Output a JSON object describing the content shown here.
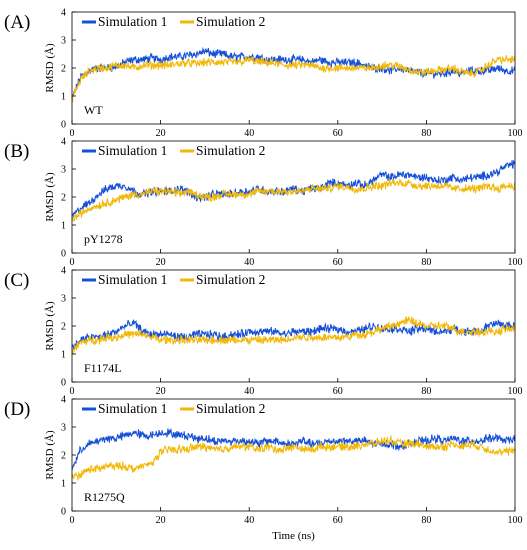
{
  "figure": {
    "xlabel": "Time (ns)",
    "x_ticks": [
      "0",
      "20",
      "40",
      "60",
      "80",
      "100"
    ],
    "y_ticks": [
      "0",
      "1",
      "2",
      "3",
      "4"
    ],
    "legend": [
      "Simulation 1",
      "Simulation 2"
    ]
  },
  "colors": {
    "sim1": "#1550d8",
    "sim2": "#f2b807"
  },
  "chart_data": [
    {
      "type": "line",
      "panel": "(A)",
      "annotation": "WT",
      "ylabel": "RMSD (Å)",
      "xlabel": "",
      "xlim": [
        0,
        100
      ],
      "ylim": [
        0,
        4
      ],
      "x": [
        0,
        2,
        4,
        6,
        8,
        10,
        12,
        14,
        16,
        18,
        20,
        22,
        24,
        26,
        28,
        30,
        32,
        34,
        36,
        38,
        40,
        42,
        44,
        46,
        48,
        50,
        52,
        54,
        56,
        58,
        60,
        62,
        64,
        66,
        68,
        70,
        72,
        74,
        76,
        78,
        80,
        82,
        84,
        86,
        88,
        90,
        92,
        94,
        96,
        98,
        100
      ],
      "series": [
        {
          "name": "Simulation 1",
          "values": [
            0.9,
            1.7,
            1.9,
            2.0,
            2.0,
            2.05,
            2.2,
            2.3,
            2.3,
            2.35,
            2.3,
            2.4,
            2.4,
            2.45,
            2.5,
            2.6,
            2.5,
            2.5,
            2.4,
            2.4,
            2.4,
            2.4,
            2.3,
            2.3,
            2.3,
            2.3,
            2.3,
            2.2,
            2.3,
            2.2,
            2.2,
            2.2,
            2.2,
            2.1,
            2.0,
            2.0,
            1.9,
            2.0,
            1.9,
            1.85,
            1.8,
            1.8,
            1.8,
            1.9,
            1.8,
            1.9,
            1.9,
            1.9,
            2.0,
            1.9,
            1.9
          ]
        },
        {
          "name": "Simulation 2",
          "values": [
            0.9,
            1.6,
            1.9,
            2.0,
            2.0,
            2.1,
            2.1,
            2.0,
            2.1,
            2.1,
            2.1,
            2.1,
            2.15,
            2.2,
            2.15,
            2.2,
            2.2,
            2.2,
            2.2,
            2.2,
            2.3,
            2.2,
            2.2,
            2.15,
            2.1,
            2.1,
            2.1,
            2.1,
            2.0,
            2.0,
            2.0,
            2.0,
            2.0,
            2.0,
            2.0,
            2.1,
            2.1,
            2.05,
            1.95,
            1.85,
            1.85,
            1.9,
            1.95,
            2.0,
            1.85,
            1.8,
            1.9,
            2.1,
            2.3,
            2.3,
            2.3
          ]
        }
      ]
    },
    {
      "type": "line",
      "panel": "(B)",
      "annotation": "pY1278",
      "ylabel": "RMSD (Å)",
      "xlabel": "",
      "xlim": [
        0,
        100
      ],
      "ylim": [
        0,
        4
      ],
      "x": [
        0,
        2,
        4,
        6,
        8,
        10,
        12,
        14,
        16,
        18,
        20,
        22,
        24,
        26,
        28,
        30,
        32,
        34,
        36,
        38,
        40,
        42,
        44,
        46,
        48,
        50,
        52,
        54,
        56,
        58,
        60,
        62,
        64,
        66,
        68,
        70,
        72,
        74,
        76,
        78,
        80,
        82,
        84,
        86,
        88,
        90,
        92,
        94,
        96,
        98,
        100
      ],
      "series": [
        {
          "name": "Simulation 1",
          "values": [
            1.3,
            1.6,
            1.8,
            2.1,
            2.3,
            2.4,
            2.4,
            2.2,
            2.1,
            2.2,
            2.2,
            2.2,
            2.3,
            2.2,
            2.0,
            2.0,
            2.1,
            2.1,
            2.1,
            2.2,
            2.2,
            2.3,
            2.2,
            2.2,
            2.2,
            2.3,
            2.2,
            2.3,
            2.3,
            2.5,
            2.5,
            2.4,
            2.5,
            2.4,
            2.6,
            2.8,
            2.7,
            2.8,
            2.8,
            2.7,
            2.7,
            2.6,
            2.6,
            2.7,
            2.6,
            2.7,
            2.7,
            2.8,
            2.9,
            3.1,
            3.2
          ]
        },
        {
          "name": "Simulation 2",
          "values": [
            1.2,
            1.4,
            1.6,
            1.7,
            1.8,
            1.9,
            2.0,
            2.1,
            2.1,
            2.2,
            2.2,
            2.2,
            2.1,
            2.2,
            2.1,
            2.0,
            2.0,
            2.1,
            2.1,
            2.1,
            2.1,
            2.2,
            2.2,
            2.2,
            2.2,
            2.2,
            2.2,
            2.3,
            2.3,
            2.3,
            2.4,
            2.35,
            2.3,
            2.3,
            2.4,
            2.4,
            2.5,
            2.5,
            2.5,
            2.4,
            2.4,
            2.4,
            2.4,
            2.3,
            2.3,
            2.3,
            2.3,
            2.4,
            2.3,
            2.4,
            2.4
          ]
        }
      ]
    },
    {
      "type": "line",
      "panel": "(C)",
      "annotation": "F1174L",
      "ylabel": "RMSD (Å)",
      "xlabel": "",
      "xlim": [
        0,
        100
      ],
      "ylim": [
        0,
        4
      ],
      "x": [
        0,
        2,
        4,
        6,
        8,
        10,
        12,
        14,
        16,
        18,
        20,
        22,
        24,
        26,
        28,
        30,
        32,
        34,
        36,
        38,
        40,
        42,
        44,
        46,
        48,
        50,
        52,
        54,
        56,
        58,
        60,
        62,
        64,
        66,
        68,
        70,
        72,
        74,
        76,
        78,
        80,
        82,
        84,
        86,
        88,
        90,
        92,
        94,
        96,
        98,
        100
      ],
      "series": [
        {
          "name": "Simulation 1",
          "values": [
            1.2,
            1.5,
            1.6,
            1.6,
            1.7,
            1.8,
            2.0,
            2.1,
            1.8,
            1.7,
            1.7,
            1.7,
            1.6,
            1.6,
            1.7,
            1.7,
            1.7,
            1.6,
            1.7,
            1.7,
            1.8,
            1.8,
            1.8,
            1.8,
            1.7,
            1.8,
            1.8,
            1.8,
            1.9,
            1.9,
            1.9,
            1.8,
            1.8,
            1.9,
            2.0,
            1.9,
            1.9,
            1.9,
            1.8,
            1.9,
            1.9,
            1.8,
            1.8,
            1.9,
            1.8,
            1.8,
            1.8,
            2.0,
            2.1,
            2.0,
            2.0
          ]
        },
        {
          "name": "Simulation 2",
          "values": [
            1.1,
            1.4,
            1.5,
            1.5,
            1.6,
            1.6,
            1.7,
            1.7,
            1.7,
            1.6,
            1.5,
            1.5,
            1.5,
            1.5,
            1.5,
            1.5,
            1.5,
            1.5,
            1.5,
            1.5,
            1.5,
            1.5,
            1.5,
            1.5,
            1.5,
            1.6,
            1.6,
            1.6,
            1.6,
            1.6,
            1.6,
            1.6,
            1.7,
            1.7,
            1.8,
            1.9,
            2.0,
            2.1,
            2.2,
            2.1,
            2.0,
            2.0,
            2.0,
            1.9,
            1.8,
            1.8,
            1.8,
            1.8,
            1.8,
            1.9,
            1.9
          ]
        }
      ]
    },
    {
      "type": "line",
      "panel": "(D)",
      "annotation": "R1275Q",
      "ylabel": "RMSD (Å)",
      "xlabel": "Time (ns)",
      "xlim": [
        0,
        100
      ],
      "ylim": [
        0,
        4
      ],
      "x": [
        0,
        2,
        4,
        6,
        8,
        10,
        12,
        14,
        16,
        18,
        20,
        22,
        24,
        26,
        28,
        30,
        32,
        34,
        36,
        38,
        40,
        42,
        44,
        46,
        48,
        50,
        52,
        54,
        56,
        58,
        60,
        62,
        64,
        66,
        68,
        70,
        72,
        74,
        76,
        78,
        80,
        82,
        84,
        86,
        88,
        90,
        92,
        94,
        96,
        98,
        100
      ],
      "series": [
        {
          "name": "Simulation 1",
          "values": [
            1.5,
            2.2,
            2.4,
            2.5,
            2.6,
            2.6,
            2.7,
            2.8,
            2.7,
            2.7,
            2.8,
            2.8,
            2.7,
            2.7,
            2.6,
            2.6,
            2.5,
            2.5,
            2.5,
            2.5,
            2.5,
            2.4,
            2.5,
            2.5,
            2.4,
            2.4,
            2.5,
            2.4,
            2.4,
            2.5,
            2.5,
            2.5,
            2.5,
            2.5,
            2.4,
            2.4,
            2.4,
            2.3,
            2.4,
            2.5,
            2.5,
            2.6,
            2.5,
            2.6,
            2.5,
            2.5,
            2.5,
            2.6,
            2.6,
            2.5,
            2.6
          ]
        },
        {
          "name": "Simulation 2",
          "values": [
            1.2,
            1.3,
            1.5,
            1.5,
            1.6,
            1.6,
            1.6,
            1.5,
            1.6,
            1.7,
            2.1,
            2.2,
            2.2,
            2.2,
            2.3,
            2.3,
            2.2,
            2.2,
            2.3,
            2.3,
            2.3,
            2.2,
            2.3,
            2.2,
            2.2,
            2.3,
            2.2,
            2.2,
            2.3,
            2.3,
            2.3,
            2.3,
            2.3,
            2.4,
            2.4,
            2.5,
            2.5,
            2.4,
            2.4,
            2.4,
            2.3,
            2.3,
            2.3,
            2.4,
            2.3,
            2.4,
            2.3,
            2.2,
            2.1,
            2.1,
            2.2
          ]
        }
      ]
    }
  ]
}
